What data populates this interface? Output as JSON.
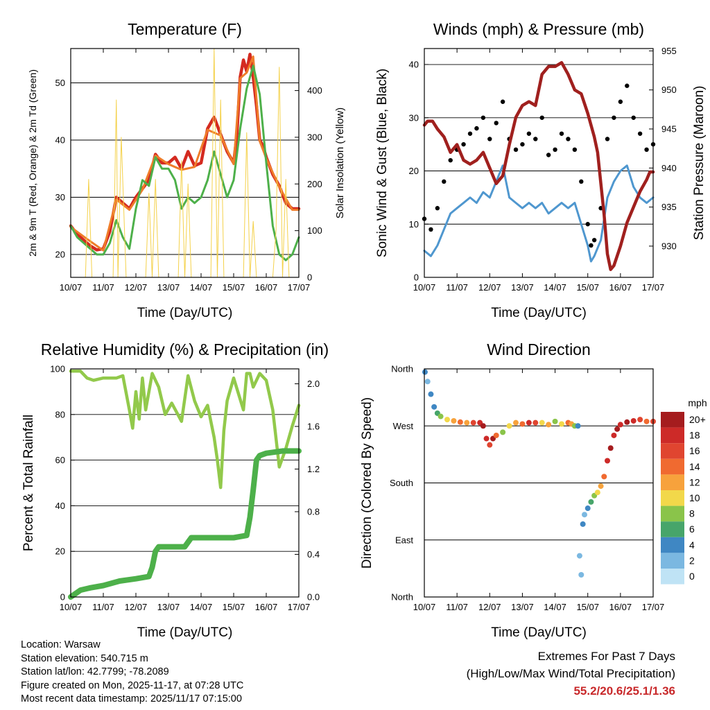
{
  "x_ticks": [
    "10/07",
    "11/07",
    "12/07",
    "13/07",
    "14/07",
    "15/07",
    "16/07",
    "17/07"
  ],
  "x_label": "Time (Day/UTC)",
  "chart_data": [
    {
      "id": "temperature",
      "type": "line",
      "title": "Temperature (F)",
      "ylabel": "2m & 9m T (Red, Orange) & 2m Td (Green)",
      "ylabel_right": "Solar Insolation (Yellow)",
      "ylim": [
        16,
        56
      ],
      "yticks": [
        20,
        30,
        40,
        50
      ],
      "ylim_right": [
        0,
        490
      ],
      "yticks_right": [
        0,
        100,
        200,
        300,
        400
      ],
      "xlim": [
        0,
        7
      ],
      "series": [
        {
          "name": "2m T",
          "color": "#d42a20",
          "axis": "left",
          "x": [
            0,
            0.2,
            0.4,
            0.6,
            0.8,
            1.0,
            1.2,
            1.4,
            1.6,
            1.8,
            2.0,
            2.2,
            2.4,
            2.6,
            2.8,
            3.0,
            3.2,
            3.4,
            3.6,
            3.8,
            4.0,
            4.2,
            4.4,
            4.6,
            4.8,
            5.0,
            5.1,
            5.2,
            5.3,
            5.4,
            5.5,
            5.6,
            5.7,
            5.8,
            5.9,
            6.0,
            6.2,
            6.4,
            6.6,
            6.8,
            7.0
          ],
          "values": [
            25,
            23.5,
            22.5,
            21.5,
            20.8,
            21,
            24,
            30,
            29,
            28,
            30,
            31.5,
            33,
            37.5,
            36,
            36,
            37,
            35,
            38,
            35.5,
            36,
            42,
            44,
            41,
            38,
            36,
            41,
            51,
            54,
            52,
            55,
            51,
            46,
            40,
            39,
            37,
            34,
            32,
            29,
            28,
            28
          ]
        },
        {
          "name": "9m T",
          "color": "#ef7d2a",
          "axis": "left",
          "x": [
            0,
            0.5,
            1.0,
            1.4,
            1.8,
            2.2,
            2.6,
            3.0,
            3.4,
            3.8,
            4.2,
            4.6,
            5.0,
            5.2,
            5.4,
            5.6,
            5.8,
            6.0,
            6.4,
            6.8,
            7.0
          ],
          "values": [
            24.8,
            22.7,
            20.7,
            29.6,
            27.8,
            31.3,
            37.3,
            35.8,
            34.8,
            35.3,
            41.8,
            40.8,
            35.8,
            50.8,
            51.8,
            54.6,
            39.8,
            36.8,
            31.8,
            27.8,
            27.8
          ]
        },
        {
          "name": "2m Td",
          "color": "#4db04a",
          "axis": "left",
          "x": [
            0,
            0.2,
            0.4,
            0.6,
            0.8,
            1.0,
            1.2,
            1.4,
            1.6,
            1.8,
            2.0,
            2.2,
            2.4,
            2.6,
            2.8,
            3.0,
            3.2,
            3.4,
            3.6,
            3.8,
            4.0,
            4.2,
            4.4,
            4.6,
            4.8,
            5.0,
            5.2,
            5.4,
            5.6,
            5.8,
            6.0,
            6.2,
            6.4,
            6.6,
            6.8,
            7.0
          ],
          "values": [
            25,
            23,
            22,
            21,
            20,
            20,
            22,
            26,
            23,
            21,
            28,
            33,
            32,
            37,
            35,
            35,
            33,
            28,
            30,
            29,
            30,
            33,
            38,
            34,
            30,
            33,
            42,
            49,
            53,
            48,
            36,
            25,
            20,
            19,
            20,
            23
          ]
        },
        {
          "name": "Solar Insolation",
          "color": "#f4d14a",
          "axis": "right",
          "x": [
            0,
            0.15,
            0.3,
            0.45,
            0.55,
            0.65,
            0.8,
            1.0,
            1.3,
            1.4,
            1.45,
            1.55,
            1.7,
            2.3,
            2.4,
            2.5,
            2.6,
            2.7,
            2.8,
            3.3,
            3.4,
            3.5,
            3.6,
            3.7,
            3.8,
            4.3,
            4.4,
            4.5,
            4.6,
            4.7,
            4.8,
            5.3,
            5.4,
            5.5,
            5.6,
            5.7,
            5.8,
            6.2,
            6.3,
            6.4,
            6.5,
            6.6,
            6.7,
            7.0
          ],
          "values": [
            0,
            0,
            0,
            0,
            210,
            0,
            0,
            0,
            0,
            380,
            0,
            300,
            0,
            0,
            180,
            0,
            210,
            0,
            0,
            0,
            250,
            0,
            200,
            0,
            0,
            0,
            490,
            0,
            380,
            0,
            0,
            0,
            310,
            0,
            120,
            0,
            0,
            0,
            100,
            450,
            0,
            210,
            0,
            0
          ]
        }
      ]
    },
    {
      "id": "winds",
      "type": "line",
      "title": "Winds (mph) & Pressure (mb)",
      "ylabel": "Sonic Wind & Gust (Blue, Black)",
      "ylabel_right": "Station Pressure (Maroon)",
      "ylim": [
        0,
        43
      ],
      "yticks": [
        0,
        10,
        20,
        30,
        40
      ],
      "ylim_right": [
        926,
        955.3
      ],
      "yticks_right": [
        930,
        935,
        940,
        945,
        950,
        955
      ],
      "xlim": [
        0,
        7
      ],
      "series": [
        {
          "name": "Sonic Wind",
          "color": "#4f97cf",
          "axis": "left",
          "x": [
            0,
            0.2,
            0.4,
            0.6,
            0.8,
            1.0,
            1.2,
            1.4,
            1.6,
            1.8,
            2.0,
            2.2,
            2.4,
            2.6,
            2.8,
            3.0,
            3.2,
            3.4,
            3.6,
            3.8,
            4.0,
            4.2,
            4.4,
            4.6,
            4.8,
            5.0,
            5.1,
            5.2,
            5.4,
            5.6,
            5.8,
            6.0,
            6.2,
            6.4,
            6.6,
            6.8,
            7.0
          ],
          "values": [
            5,
            4,
            6,
            9,
            12,
            13,
            14,
            15,
            14,
            16,
            15,
            18,
            21,
            15,
            14,
            13,
            14,
            13,
            14,
            12,
            13,
            14,
            13,
            14,
            10,
            6,
            3,
            4,
            7,
            15,
            18,
            20,
            21,
            17,
            15,
            14,
            15
          ]
        },
        {
          "name": "Gust",
          "color": "#000000",
          "axis": "left",
          "style": "dots",
          "x": [
            0,
            0.2,
            0.4,
            0.6,
            0.8,
            1.0,
            1.2,
            1.4,
            1.6,
            1.8,
            2.0,
            2.2,
            2.4,
            2.6,
            2.8,
            3.0,
            3.2,
            3.4,
            3.6,
            3.8,
            4.0,
            4.2,
            4.4,
            4.6,
            4.8,
            5.0,
            5.1,
            5.2,
            5.4,
            5.6,
            5.8,
            6.0,
            6.2,
            6.4,
            6.6,
            6.8,
            7.0
          ],
          "values": [
            11,
            9,
            13,
            18,
            22,
            24,
            25,
            27,
            28,
            30,
            26,
            29,
            33,
            26,
            24,
            25,
            27,
            26,
            30,
            23,
            24,
            27,
            26,
            24,
            18,
            10,
            6,
            7,
            13,
            26,
            30,
            33,
            36,
            30,
            27,
            24,
            25
          ]
        },
        {
          "name": "Station Pressure",
          "color": "#a0201e",
          "axis": "right",
          "x": [
            0,
            0.1,
            0.25,
            0.4,
            0.6,
            0.8,
            1.0,
            1.2,
            1.4,
            1.6,
            1.8,
            2.0,
            2.2,
            2.4,
            2.6,
            2.8,
            3.0,
            3.2,
            3.4,
            3.6,
            3.8,
            4.0,
            4.2,
            4.4,
            4.6,
            4.8,
            5.0,
            5.2,
            5.3,
            5.4,
            5.5,
            5.6,
            5.7,
            5.8,
            6.0,
            6.2,
            6.4,
            6.6,
            6.8,
            6.9,
            7.0
          ],
          "values": [
            945.5,
            946,
            946,
            945,
            944,
            942,
            943,
            941,
            940.5,
            941,
            942,
            940,
            938,
            939,
            943,
            946.5,
            948,
            948.5,
            948,
            952,
            953,
            953,
            953.5,
            952,
            950,
            949.5,
            947,
            944,
            942,
            938,
            934,
            929,
            927,
            927.5,
            930,
            933,
            935,
            937,
            938.5,
            939.5,
            939.5
          ]
        }
      ]
    },
    {
      "id": "humidity",
      "type": "line",
      "title": "Relative Humidity (%) & Precipitation (in)",
      "ylabel": "Percent & Total Rainfall",
      "ylim": [
        0,
        100
      ],
      "yticks": [
        0,
        20,
        40,
        60,
        80,
        100
      ],
      "ylim_right": [
        0,
        2.14
      ],
      "yticks_right": [
        "0.0",
        "0.4",
        "0.8",
        "1.2",
        "1.6",
        "2.0"
      ],
      "xlim": [
        0,
        7
      ],
      "series": [
        {
          "name": "Relative Humidity",
          "color": "#92c94b",
          "axis": "left",
          "x": [
            0,
            0.3,
            0.5,
            0.7,
            1.0,
            1.4,
            1.6,
            1.8,
            1.9,
            2.0,
            2.1,
            2.2,
            2.3,
            2.5,
            2.7,
            2.9,
            3.1,
            3.4,
            3.6,
            3.8,
            4.0,
            4.2,
            4.4,
            4.5,
            4.6,
            4.7,
            4.8,
            5.0,
            5.3,
            5.4,
            5.5,
            5.6,
            5.8,
            6.0,
            6.2,
            6.4,
            6.6,
            6.8,
            7.0
          ],
          "values": [
            99,
            99,
            96,
            95,
            96,
            96,
            97,
            82,
            74,
            90,
            78,
            96,
            82,
            98,
            92,
            80,
            85,
            77,
            97,
            86,
            79,
            84,
            70,
            60,
            48,
            73,
            86,
            96,
            82,
            98,
            98,
            92,
            98,
            95,
            82,
            57,
            65,
            75,
            84
          ]
        },
        {
          "name": "Total Precipitation",
          "color": "#4db04a",
          "axis": "left",
          "x": [
            0,
            0.1,
            0.3,
            0.6,
            1.0,
            1.5,
            2.0,
            2.4,
            2.5,
            2.6,
            2.7,
            3.0,
            3.5,
            3.6,
            3.7,
            4.0,
            4.5,
            5.0,
            5.4,
            5.5,
            5.6,
            5.7,
            5.8,
            6.0,
            6.5,
            7.0
          ],
          "values": [
            0,
            1,
            3,
            4,
            5,
            7,
            8,
            9,
            13,
            20,
            22,
            22,
            22,
            24,
            26,
            26,
            26,
            26,
            27,
            35,
            47,
            60,
            62,
            63,
            64,
            64
          ]
        }
      ]
    },
    {
      "id": "wind_direction",
      "type": "scatter",
      "title": "Wind Direction",
      "ylabel": "Direction (Colored By Speed)",
      "ycategories": [
        "North",
        "East",
        "South",
        "West",
        "North"
      ],
      "ylim": [
        0,
        360
      ],
      "xlim": [
        0,
        7
      ],
      "legend_title": "mph",
      "legend_labels": [
        "20+",
        "18",
        "16",
        "14",
        "12",
        "10",
        "8",
        "6",
        "4",
        "2",
        "0"
      ],
      "legend_colors": [
        "#a51c1e",
        "#cd2a28",
        "#e04530",
        "#f06a30",
        "#f7a23c",
        "#f2d84a",
        "#8ac44a",
        "#47a56a",
        "#3f87c3",
        "#7bb8e1",
        "#bfe3f5"
      ],
      "series": [
        {
          "name": "Wind Direction",
          "axis": "left",
          "x": [
            0.02,
            0.1,
            0.2,
            0.3,
            0.4,
            0.5,
            0.7,
            0.9,
            1.1,
            1.3,
            1.5,
            1.7,
            1.8,
            1.9,
            2.0,
            2.1,
            2.2,
            2.4,
            2.6,
            2.8,
            3.0,
            3.2,
            3.4,
            3.6,
            3.8,
            4.0,
            4.2,
            4.4,
            4.5,
            4.6,
            4.7,
            4.75,
            4.8,
            4.85,
            4.9,
            5.0,
            5.1,
            5.2,
            5.3,
            5.4,
            5.5,
            5.6,
            5.7,
            5.8,
            5.9,
            6.0,
            6.2,
            6.4,
            6.6,
            6.8,
            7.0
          ],
          "speeds": [
            4,
            3,
            4,
            5,
            6,
            8,
            10,
            12,
            14,
            12,
            16,
            18,
            20,
            18,
            16,
            20,
            14,
            8,
            10,
            12,
            14,
            18,
            16,
            10,
            12,
            8,
            10,
            14,
            12,
            8,
            4,
            2,
            3,
            4,
            2,
            4,
            6,
            8,
            10,
            12,
            14,
            18,
            20,
            18,
            20,
            18,
            20,
            18,
            16,
            14,
            16
          ],
          "values": [
            355,
            340,
            320,
            300,
            290,
            285,
            280,
            278,
            276,
            275,
            275,
            275,
            270,
            250,
            240,
            250,
            255,
            260,
            270,
            275,
            273,
            275,
            275,
            275,
            272,
            277,
            273,
            275,
            273,
            270,
            270,
            65,
            35,
            115,
            130,
            140,
            150,
            160,
            165,
            175,
            190,
            215,
            235,
            255,
            265,
            272,
            276,
            278,
            280,
            277,
            277
          ]
        }
      ]
    }
  ],
  "info": {
    "location": "Location: Warsaw",
    "elevation": "Station elevation: 540.715 m",
    "latlon": "Station lat/lon: 42.7799; -78.2089",
    "created": "Figure created on Mon, 2025-11-17, at 07:28 UTC",
    "recent": "Most recent data timestamp: 2025/11/17 07:15:00"
  },
  "extremes": {
    "title": "Extremes For Past 7 Days",
    "subtitle": "(High/Low/Max Wind/Total Precipitation)",
    "values": "55.2/20.6/25.1/1.36"
  }
}
